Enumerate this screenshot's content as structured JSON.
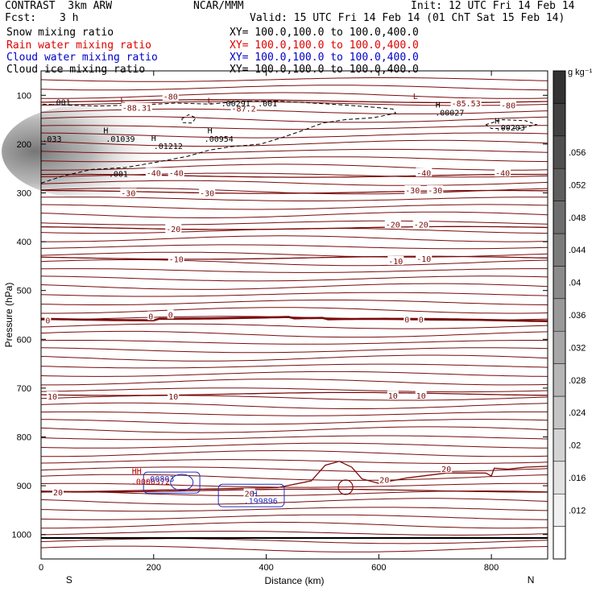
{
  "header": {
    "model": "CONTRAST  3km ARW",
    "org": "NCAR/MMM",
    "init": "Init: 12 UTC Fri 14 Feb 14",
    "fcst_label": "Fcst:",
    "fcst_value": "3 h",
    "valid": "Valid: 15 UTC Fri 14 Feb 14 (01 ChT Sat 15 Feb 14)"
  },
  "fields": [
    {
      "name": "Snow mixing ratio",
      "xy": "XY= 100.0,100.0 to 100.0,400.0",
      "color": "#000000"
    },
    {
      "name": "Rain water mixing ratio",
      "xy": "XY= 100.0,100.0 to 100.0,400.0",
      "color": "#e00000"
    },
    {
      "name": "Cloud water mixing ratio",
      "xy": "XY= 100.0,100.0 to 100.0,400.0",
      "color": "#0000c8"
    },
    {
      "name": "Cloud ice mixing ratio",
      "xy": "XY= 100.0,100.0 to 100.0,400.0",
      "color": "#000000"
    }
  ],
  "colors": {
    "temperature": "#7a0a0a",
    "rain": "#c00000",
    "cloud": "#2030c0",
    "ice": "#000000"
  },
  "chart_data": {
    "type": "contour",
    "xlabel": "Distance (km)",
    "ylabel": "Pressure (hPa)",
    "xlim": [
      0,
      900
    ],
    "ylim": [
      1050,
      50
    ],
    "xticks": [
      0,
      200,
      400,
      600,
      800
    ],
    "yticks": [
      100,
      200,
      300,
      400,
      500,
      600,
      700,
      800,
      900,
      1000
    ],
    "x_end_labels": {
      "left": "S",
      "right": "N"
    },
    "colorbar": {
      "units": "g kg⁻¹",
      "ticks": [
        ".012",
        ".016",
        ".02",
        ".024",
        ".028",
        ".032",
        ".036",
        ".04",
        ".044",
        ".048",
        ".052",
        ".056"
      ]
    },
    "isotherms": [
      {
        "value": -80,
        "label": "-80",
        "p": 112
      },
      {
        "value": -40,
        "label": "-40",
        "p": 265
      },
      {
        "value": -30,
        "label": "-30",
        "p": 298
      },
      {
        "value": -20,
        "label": "-20",
        "p": 372
      },
      {
        "value": -10,
        "label": "-10",
        "p": 433
      },
      {
        "value": 0,
        "label": "0",
        "p": 558
      },
      {
        "value": 10,
        "label": "10",
        "p": 712
      },
      {
        "value": 20,
        "label": "20",
        "p": 910
      }
    ],
    "temp_labels": [
      {
        "text": "-80",
        "x": 230,
        "p": 104
      },
      {
        "text": "-80",
        "x": 830,
        "p": 122
      },
      {
        "text": "-88.31",
        "x": 170,
        "p": 127
      },
      {
        "text": "-87.2",
        "x": 360,
        "p": 128
      },
      {
        "text": "-85.53",
        "x": 755,
        "p": 118
      },
      {
        "text": "-40",
        "x": 200,
        "p": 260
      },
      {
        "text": "-40",
        "x": 240,
        "p": 260
      },
      {
        "text": "-40",
        "x": 680,
        "p": 260
      },
      {
        "text": "-40",
        "x": 820,
        "p": 260
      },
      {
        "text": "-30",
        "x": 155,
        "p": 302
      },
      {
        "text": "-30",
        "x": 295,
        "p": 302
      },
      {
        "text": "-30",
        "x": 660,
        "p": 296
      },
      {
        "text": "-30",
        "x": 700,
        "p": 296
      },
      {
        "text": "-20",
        "x": 235,
        "p": 375
      },
      {
        "text": "-20",
        "x": 625,
        "p": 366
      },
      {
        "text": "-20",
        "x": 675,
        "p": 366
      },
      {
        "text": "-10",
        "x": 240,
        "p": 437
      },
      {
        "text": "-10",
        "x": 630,
        "p": 441
      },
      {
        "text": "-10",
        "x": 680,
        "p": 436
      },
      {
        "text": "0",
        "x": 12,
        "p": 562
      },
      {
        "text": "0",
        "x": 195,
        "p": 554
      },
      {
        "text": "0",
        "x": 230,
        "p": 551
      },
      {
        "text": "0",
        "x": 650,
        "p": 561
      },
      {
        "text": "0",
        "x": 675,
        "p": 561
      },
      {
        "text": "10",
        "x": 20,
        "p": 718
      },
      {
        "text": "10",
        "x": 235,
        "p": 718
      },
      {
        "text": "10",
        "x": 625,
        "p": 717
      },
      {
        "text": "10",
        "x": 675,
        "p": 717
      },
      {
        "text": "20",
        "x": 30,
        "p": 915
      },
      {
        "text": "20",
        "x": 370,
        "p": 917
      },
      {
        "text": "20",
        "x": 610,
        "p": 889
      },
      {
        "text": "20",
        "x": 720,
        "p": 867
      }
    ],
    "extrema": [
      {
        "kind": "L",
        "x": 145,
        "p": 110,
        "color": "#7a0a0a"
      },
      {
        "kind": "L",
        "x": 300,
        "p": 112,
        "color": "#7a0a0a"
      },
      {
        "kind": "L",
        "x": 665,
        "p": 103,
        "color": "#7a0a0a"
      },
      {
        "kind": "H",
        "x": 115,
        "p": 173,
        "color": "#000000"
      },
      {
        "kind": "H",
        "x": 200,
        "p": 189,
        "color": "#000000"
      },
      {
        "kind": "H",
        "x": 300,
        "p": 173,
        "color": "#000000"
      },
      {
        "kind": "H",
        "x": 705,
        "p": 120,
        "color": "#000000"
      },
      {
        "kind": "H",
        "x": 810,
        "p": 153,
        "color": "#000000"
      },
      {
        "kind": "HH",
        "x": 170,
        "p": 871,
        "color": "#c00000"
      },
      {
        "kind": "H",
        "x": 380,
        "p": 917,
        "color": "#2030c0"
      }
    ],
    "values": [
      {
        "text": ".001",
        "x": 18,
        "p": 115,
        "color": "#000000"
      },
      {
        "text": ".001",
        "x": 385,
        "p": 118,
        "color": "#000000"
      },
      {
        "text": ".00291",
        "x": 320,
        "p": 118,
        "color": "#000000"
      },
      {
        "text": ".00027",
        "x": 700,
        "p": 137,
        "color": "#000000"
      },
      {
        "text": ".00203",
        "x": 808,
        "p": 167,
        "color": "#000000"
      },
      {
        "text": ".01039",
        "x": 115,
        "p": 190,
        "color": "#000000"
      },
      {
        "text": ".01212",
        "x": 200,
        "p": 205,
        "color": "#000000"
      },
      {
        "text": ".00954",
        "x": 290,
        "p": 190,
        "color": "#000000"
      },
      {
        "text": ".033",
        "x": 2,
        "p": 190,
        "color": "#000000"
      },
      {
        "text": ".001",
        "x": 120,
        "p": 262,
        "color": "#000000"
      },
      {
        "text": ".0000372",
        "x": 160,
        "p": 892,
        "color": "#c00000"
      },
      {
        "text": ".00803",
        "x": 185,
        "p": 887,
        "color": "#2030c0"
      },
      {
        "text": ".199896",
        "x": 360,
        "p": 932,
        "color": "#2030c0"
      }
    ]
  }
}
